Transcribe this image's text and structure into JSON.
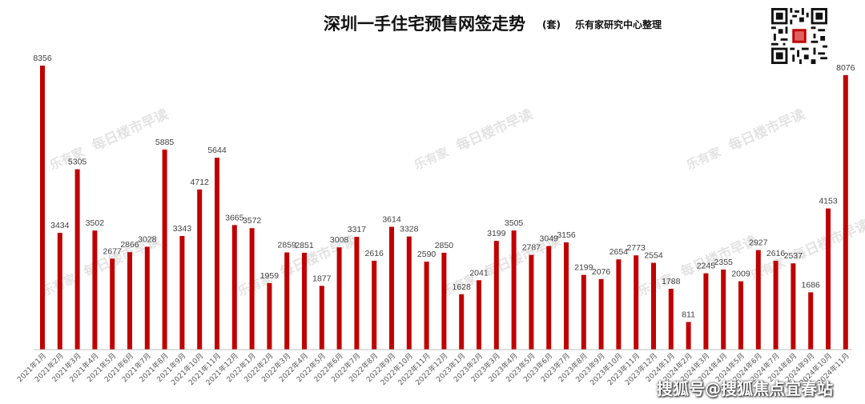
{
  "header": {
    "title": "深圳一手住宅预售网签走势",
    "unit": "(套)",
    "org": "乐有家研究中心整理"
  },
  "watermarks": {
    "logo": "乐有家",
    "text": "每日楼市早读",
    "footer": "搜狐号@搜狐焦点宜春站"
  },
  "colors": {
    "bar": "#c00000",
    "axis": "#bfbfbf",
    "label": "#404040",
    "watermark": "#e3e3e3"
  },
  "chart_data": {
    "type": "bar",
    "categories": [
      "2021年1月",
      "2021年2月",
      "2021年3月",
      "2021年4月",
      "2021年5月",
      "2021年6月",
      "2021年7月",
      "2021年8月",
      "2021年9月",
      "2021年10月",
      "2021年11月",
      "2021年12月",
      "2022年1月",
      "2022年2月",
      "2022年3月",
      "2022年4月",
      "2022年5月",
      "2022年6月",
      "2022年7月",
      "2022年8月",
      "2022年9月",
      "2022年10月",
      "2022年11月",
      "2022年12月",
      "2023年1月",
      "2023年2月",
      "2023年3月",
      "2023年4月",
      "2023年5月",
      "2023年6月",
      "2023年7月",
      "2023年8月",
      "2023年9月",
      "2023年10月",
      "2023年11月",
      "2023年12月",
      "2024年1月",
      "2024年2月",
      "2024年3月",
      "2024年4月",
      "2024年5月",
      "2024年6月",
      "2024年7月",
      "2024年8月",
      "2024年9月",
      "2024年10月",
      "2024年11月"
    ],
    "values": [
      8356,
      3434,
      5305,
      3502,
      2677,
      2866,
      3028,
      5885,
      3343,
      4712,
      5644,
      3665,
      3572,
      1959,
      2859,
      2851,
      1877,
      3008,
      3317,
      2616,
      3614,
      3328,
      2590,
      2850,
      1628,
      2041,
      3199,
      3505,
      2787,
      3049,
      3156,
      2199,
      2076,
      2654,
      2773,
      2554,
      1788,
      811,
      2245,
      2355,
      2009,
      2927,
      2616,
      2537,
      1686,
      4153,
      8076
    ],
    "title": "深圳一手住宅预售网签走势",
    "ylim": [
      0,
      8356
    ],
    "grid": false,
    "legend": "none"
  }
}
